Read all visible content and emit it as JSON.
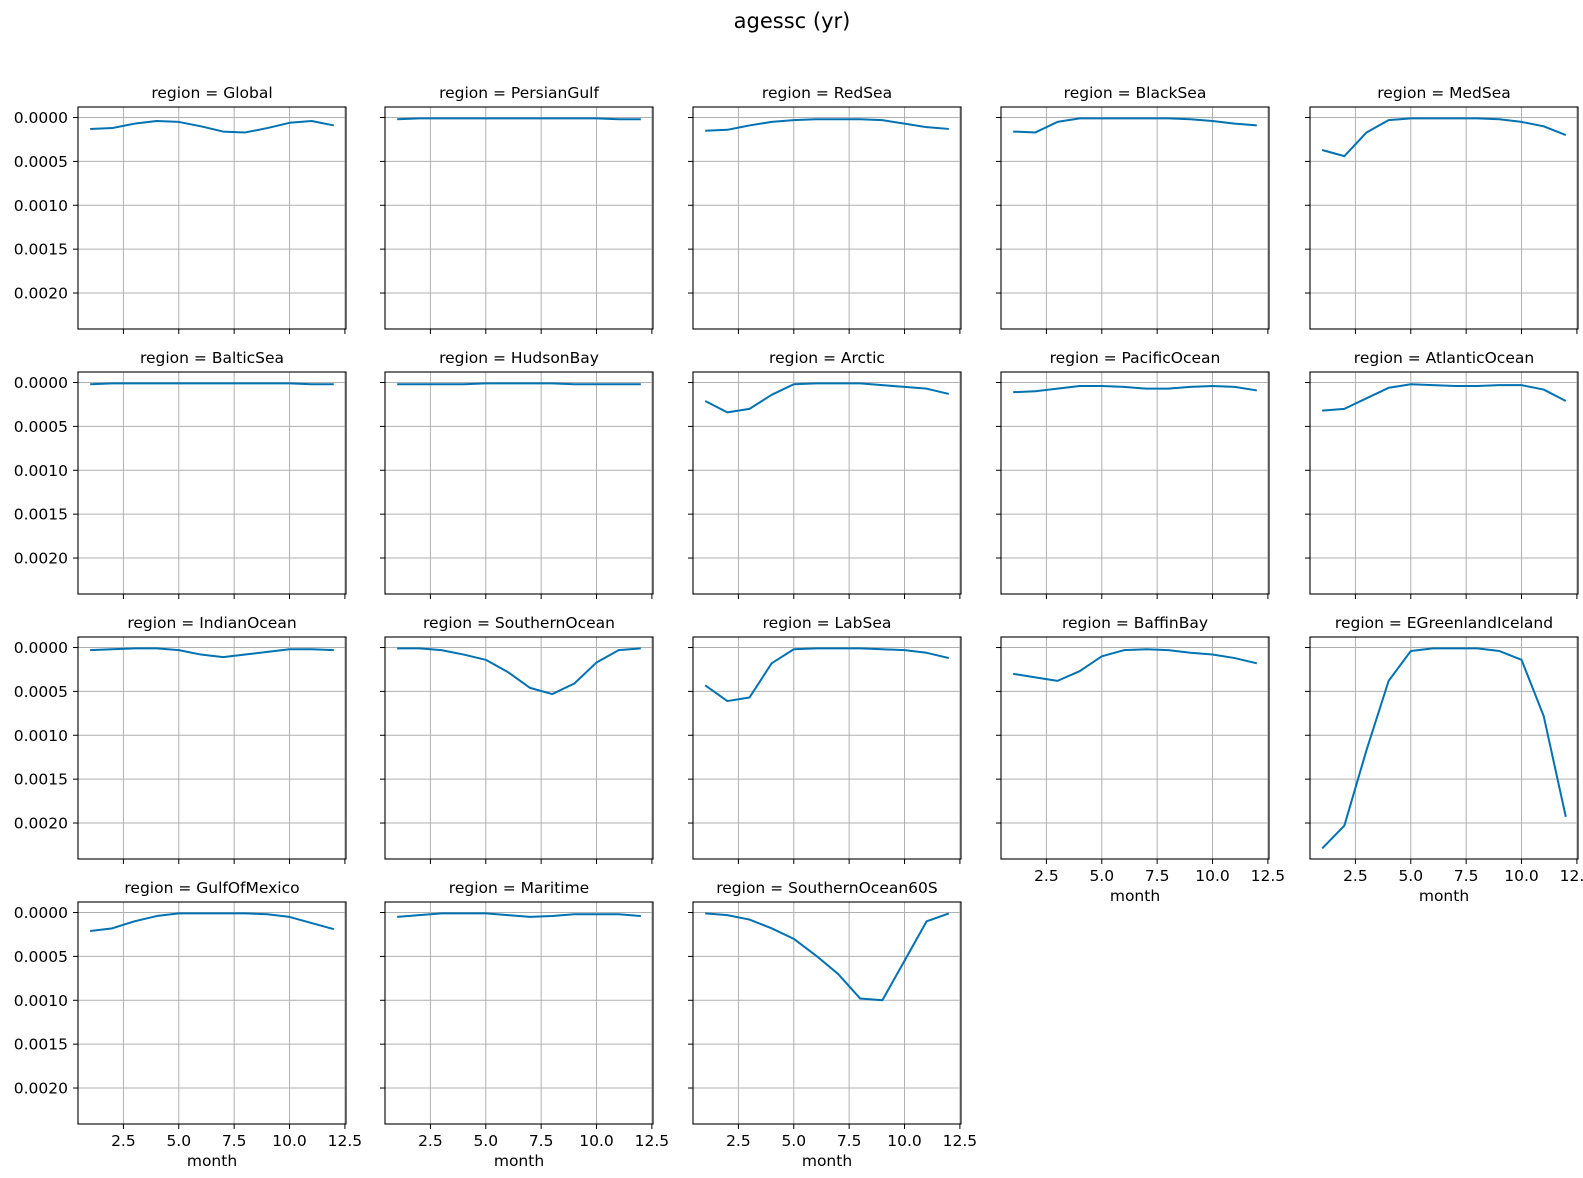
{
  "chart_data": {
    "type": "line",
    "title": "agessc (yr)",
    "x": [
      1,
      2,
      3,
      4,
      5,
      6,
      7,
      8,
      9,
      10,
      11,
      12
    ],
    "xlabel": "month",
    "ylabel": "",
    "xlim": [
      0.45,
      12.55
    ],
    "ylim": [
      0.00241,
      -0.00012
    ],
    "y_inverted": true,
    "xticks": [
      2.5,
      5.0,
      7.5,
      10.0,
      12.5
    ],
    "xtick_labels": [
      "2.5",
      "5.0",
      "7.5",
      "10.0",
      "12.5"
    ],
    "yticks": [
      0.0,
      0.0005,
      0.001,
      0.0015,
      0.002
    ],
    "ytick_labels": [
      "0.0000",
      "0.0005",
      "0.0010",
      "0.0015",
      "0.0020"
    ],
    "grid": true,
    "line_color": "#0072b2",
    "panel_title_prefix": "region = ",
    "panels": [
      {
        "region": "Global",
        "values": [
          0.00013,
          0.00012,
          7e-05,
          4e-05,
          5e-05,
          0.0001,
          0.00016,
          0.00017,
          0.00012,
          6e-05,
          4e-05,
          9e-05
        ]
      },
      {
        "region": "PersianGulf",
        "values": [
          2e-05,
          1e-05,
          1e-05,
          1e-05,
          1e-05,
          1e-05,
          1e-05,
          1e-05,
          1e-05,
          1e-05,
          2e-05,
          2e-05
        ]
      },
      {
        "region": "RedSea",
        "values": [
          0.00015,
          0.00014,
          9e-05,
          5e-05,
          3e-05,
          2e-05,
          2e-05,
          2e-05,
          3e-05,
          7e-05,
          0.00011,
          0.00013
        ]
      },
      {
        "region": "BlackSea",
        "values": [
          0.00016,
          0.00017,
          5e-05,
          1e-05,
          1e-05,
          1e-05,
          1e-05,
          1e-05,
          2e-05,
          4e-05,
          7e-05,
          9e-05
        ]
      },
      {
        "region": "MedSea",
        "values": [
          0.00037,
          0.00044,
          0.00017,
          3e-05,
          1e-05,
          1e-05,
          1e-05,
          1e-05,
          2e-05,
          5e-05,
          0.0001,
          0.0002
        ]
      },
      {
        "region": "BalticSea",
        "values": [
          2e-05,
          1e-05,
          1e-05,
          1e-05,
          1e-05,
          1e-05,
          1e-05,
          1e-05,
          1e-05,
          1e-05,
          2e-05,
          2e-05
        ]
      },
      {
        "region": "HudsonBay",
        "values": [
          2e-05,
          2e-05,
          2e-05,
          2e-05,
          1e-05,
          1e-05,
          1e-05,
          1e-05,
          2e-05,
          2e-05,
          2e-05,
          2e-05
        ]
      },
      {
        "region": "Arctic",
        "values": [
          0.00021,
          0.00034,
          0.0003,
          0.00014,
          2e-05,
          1e-05,
          1e-05,
          1e-05,
          3e-05,
          5e-05,
          7e-05,
          0.00013
        ]
      },
      {
        "region": "PacificOcean",
        "values": [
          0.00011,
          0.0001,
          7e-05,
          4e-05,
          4e-05,
          5e-05,
          7e-05,
          7e-05,
          5e-05,
          4e-05,
          5e-05,
          9e-05
        ]
      },
      {
        "region": "AtlanticOcean",
        "values": [
          0.00032,
          0.0003,
          0.00018,
          6e-05,
          2e-05,
          3e-05,
          4e-05,
          4e-05,
          3e-05,
          3e-05,
          8e-05,
          0.00021
        ]
      },
      {
        "region": "IndianOcean",
        "values": [
          3e-05,
          2e-05,
          1e-05,
          1e-05,
          3e-05,
          8e-05,
          0.00011,
          8e-05,
          5e-05,
          2e-05,
          2e-05,
          3e-05
        ]
      },
      {
        "region": "SouthernOcean",
        "values": [
          1e-05,
          1e-05,
          3e-05,
          8e-05,
          0.00014,
          0.00028,
          0.00046,
          0.00053,
          0.00041,
          0.00017,
          3e-05,
          1e-05
        ]
      },
      {
        "region": "LabSea",
        "values": [
          0.00043,
          0.00061,
          0.00057,
          0.00018,
          2e-05,
          1e-05,
          1e-05,
          1e-05,
          2e-05,
          3e-05,
          6e-05,
          0.00012
        ]
      },
      {
        "region": "BaffinBay",
        "values": [
          0.0003,
          0.00034,
          0.00038,
          0.00027,
          0.0001,
          3e-05,
          2e-05,
          3e-05,
          6e-05,
          8e-05,
          0.00012,
          0.00018
        ]
      },
      {
        "region": "EGreenlandIceland",
        "values": [
          0.00229,
          0.00203,
          0.00117,
          0.00038,
          4e-05,
          1e-05,
          1e-05,
          1e-05,
          4e-05,
          0.00014,
          0.00078,
          0.00193
        ]
      },
      {
        "region": "GulfOfMexico",
        "values": [
          0.00021,
          0.00018,
          0.0001,
          4e-05,
          1e-05,
          1e-05,
          1e-05,
          1e-05,
          2e-05,
          5e-05,
          0.00012,
          0.00019
        ]
      },
      {
        "region": "Maritime",
        "values": [
          5e-05,
          3e-05,
          1e-05,
          1e-05,
          1e-05,
          3e-05,
          5e-05,
          4e-05,
          2e-05,
          2e-05,
          2e-05,
          4e-05
        ]
      },
      {
        "region": "SouthernOcean60S",
        "values": [
          1e-05,
          3e-05,
          8e-05,
          0.00018,
          0.0003,
          0.00049,
          0.0007,
          0.00098,
          0.001,
          0.00055,
          0.0001,
          1e-05
        ]
      }
    ]
  }
}
